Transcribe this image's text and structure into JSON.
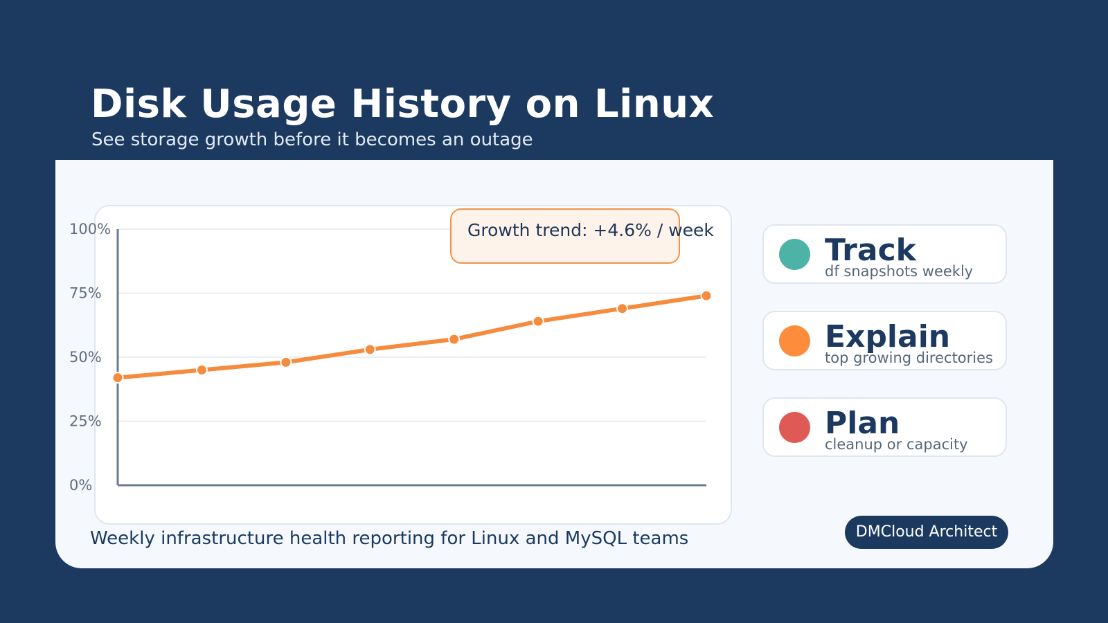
{
  "header": {
    "title": "Disk Usage History on Linux",
    "subtitle": "See storage growth before it becomes an outage"
  },
  "chart_data": {
    "type": "line",
    "title": "",
    "xlabel": "",
    "ylabel": "",
    "ylim": [
      0,
      100
    ],
    "y_ticks": [
      "0%",
      "25%",
      "50%",
      "75%",
      "100%"
    ],
    "y_tick_values": [
      0,
      25,
      50,
      75,
      100
    ],
    "x": [
      1,
      2,
      3,
      4,
      5,
      6,
      7,
      8
    ],
    "series": [
      {
        "values": [
          42,
          45,
          48,
          53,
          57,
          64,
          69,
          74
        ]
      }
    ],
    "line_color": "#f58b3c",
    "grid": true,
    "annotation": "Growth trend: +4.6% / week"
  },
  "legend_cards": [
    {
      "title": "Track",
      "subtitle": "df snapshots weekly",
      "color": "#4db3a6"
    },
    {
      "title": "Explain",
      "subtitle": "top growing directories",
      "color": "#fd8c3d"
    },
    {
      "title": "Plan",
      "subtitle": "cleanup or capacity",
      "color": "#e05a55"
    }
  ],
  "footer": {
    "text": "Weekly infrastructure health reporting for Linux and MySQL teams",
    "brand": "DMCloud Architect"
  }
}
